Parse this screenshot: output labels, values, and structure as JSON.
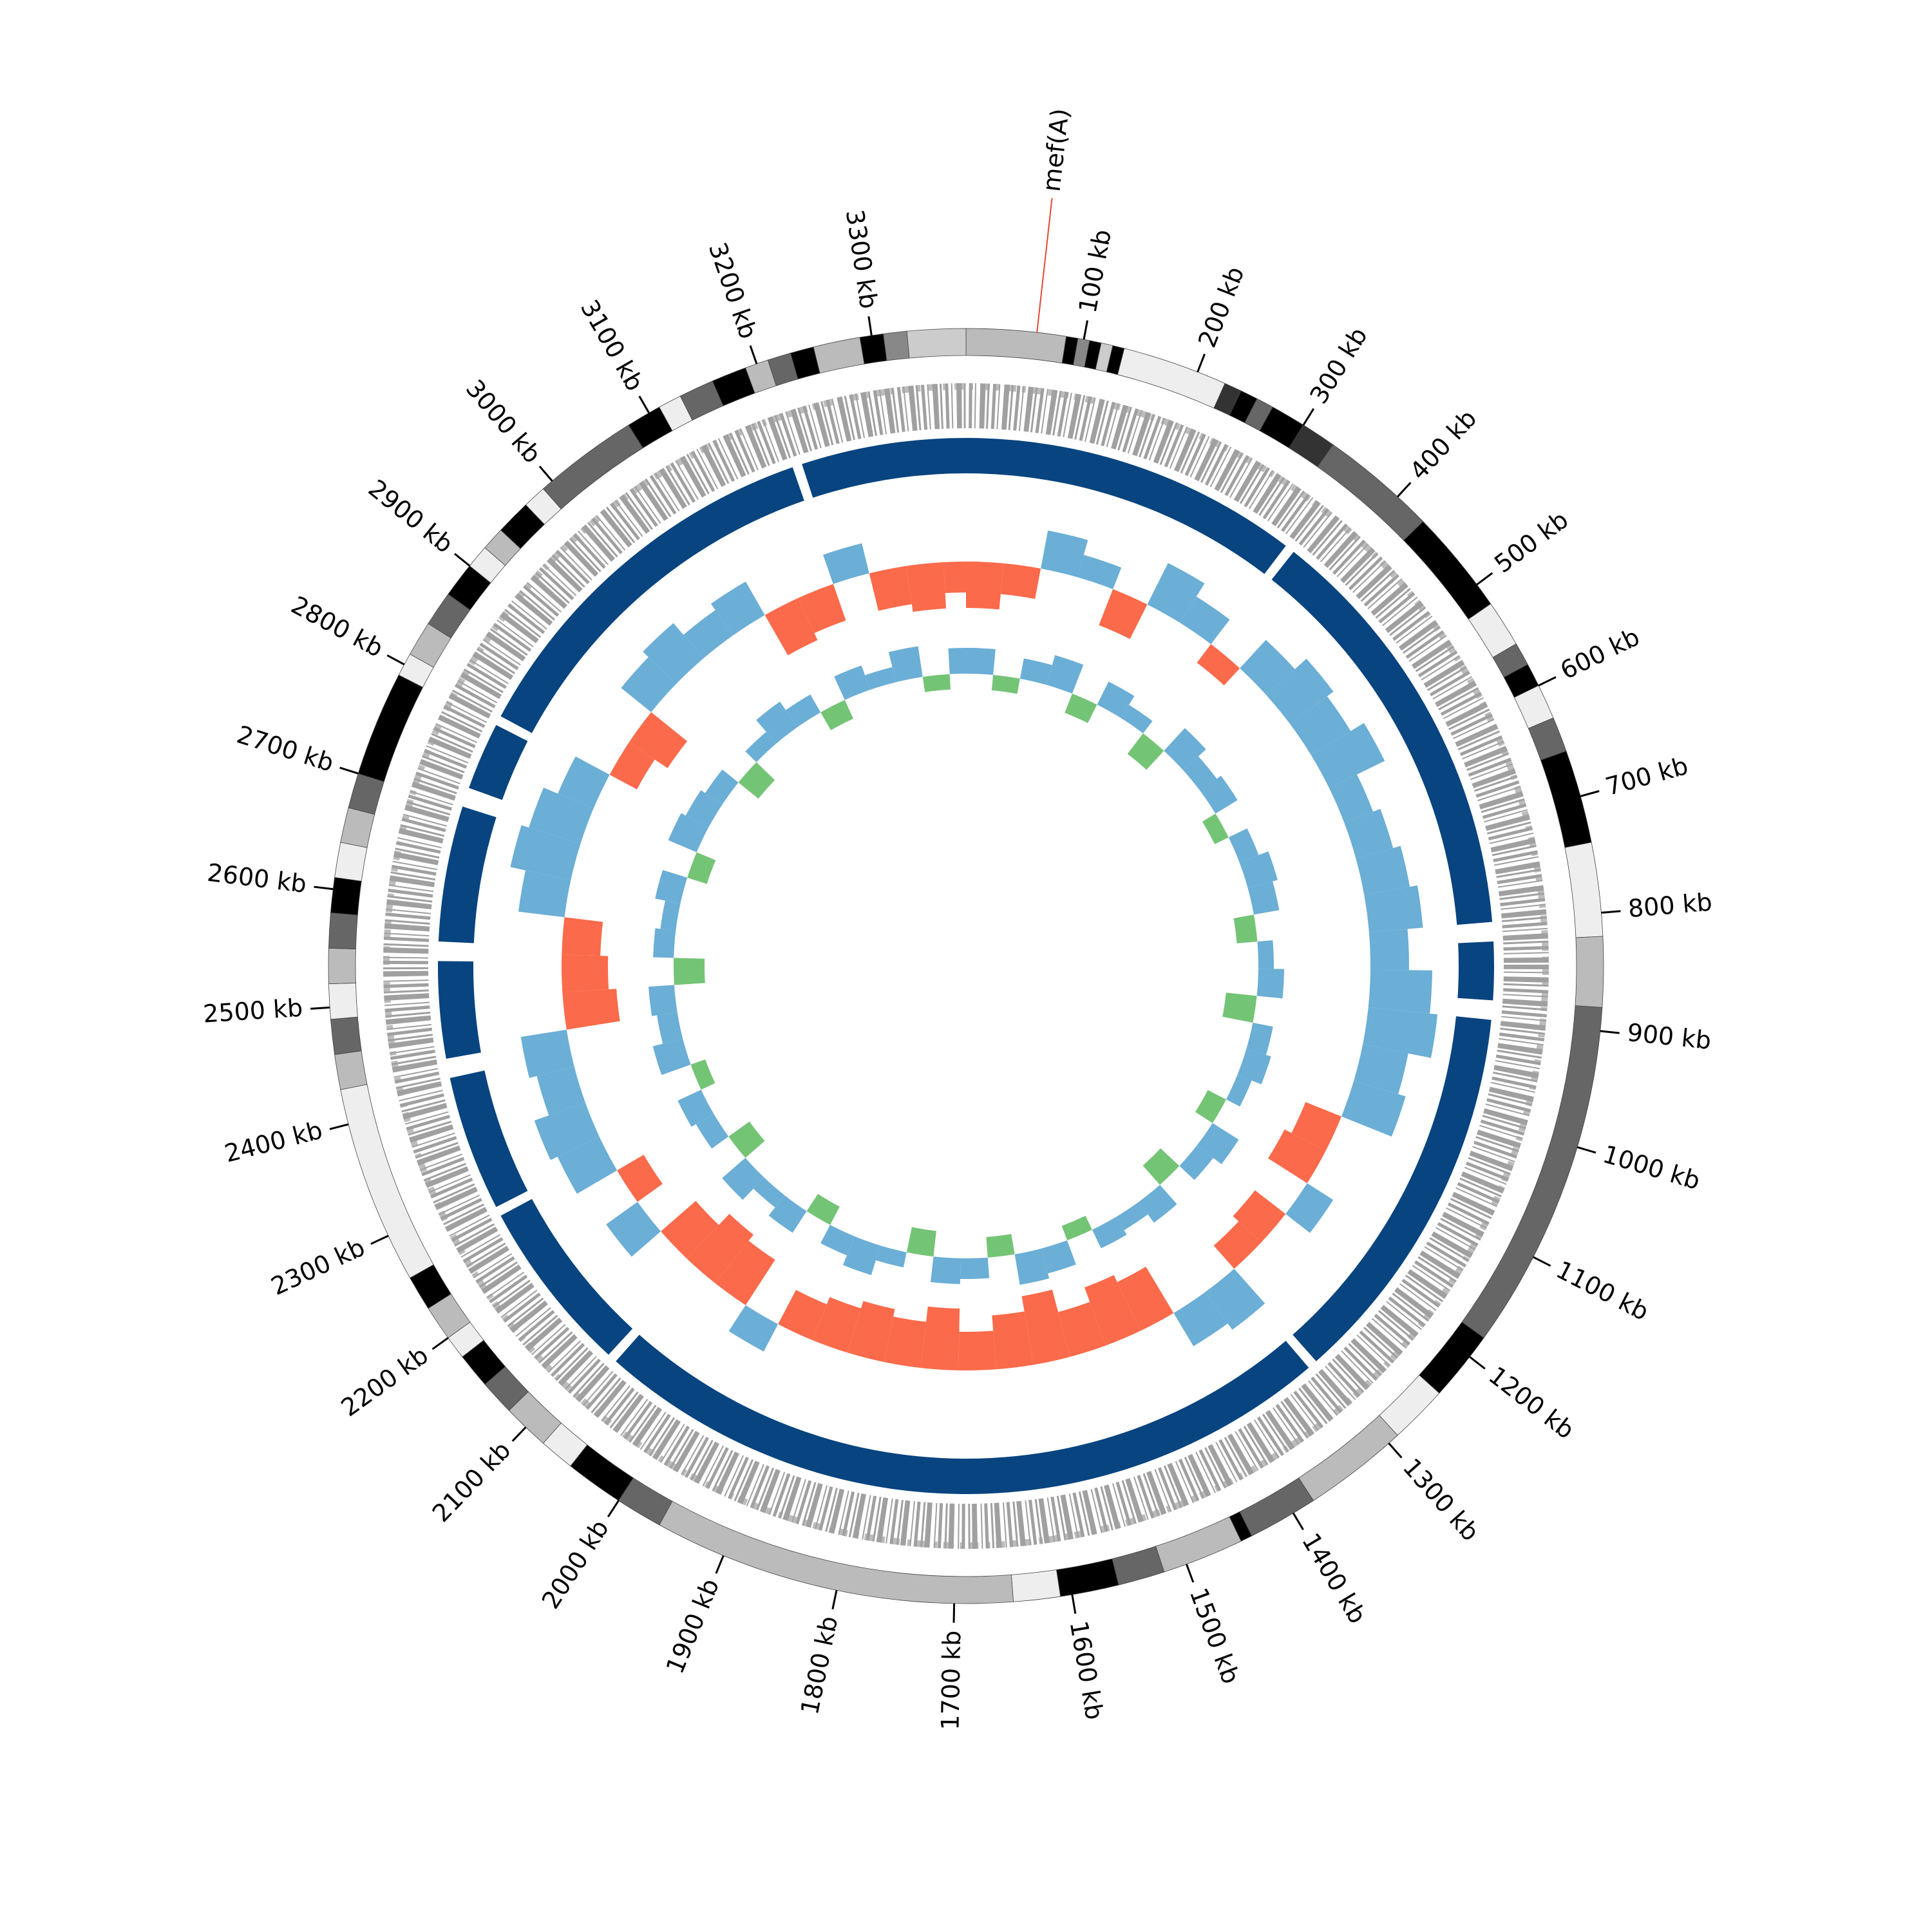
{
  "chart_data": {
    "type": "circular-genome",
    "xlim": [
      0,
      3380
    ],
    "xticks": [
      {
        "value": 100,
        "label": "100 kb"
      },
      {
        "value": 200,
        "label": "200 kb"
      },
      {
        "value": 300,
        "label": "300 kb"
      },
      {
        "value": 400,
        "label": "400 kb"
      },
      {
        "value": 500,
        "label": "500 kb"
      },
      {
        "value": 600,
        "label": "600 kb"
      },
      {
        "value": 700,
        "label": "700 kb"
      },
      {
        "value": 800,
        "label": "800 kb"
      },
      {
        "value": 900,
        "label": "900 kb"
      },
      {
        "value": 1000,
        "label": "1000 kb"
      },
      {
        "value": 1100,
        "label": "1100 kb"
      },
      {
        "value": 1200,
        "label": "1200 kb"
      },
      {
        "value": 1300,
        "label": "1300 kb"
      },
      {
        "value": 1400,
        "label": "1400 kb"
      },
      {
        "value": 1500,
        "label": "1500 kb"
      },
      {
        "value": 1600,
        "label": "1600 kb"
      },
      {
        "value": 1700,
        "label": "1700 kb"
      },
      {
        "value": 1800,
        "label": "1800 kb"
      },
      {
        "value": 1900,
        "label": "1900 kb"
      },
      {
        "value": 2000,
        "label": "2000 kb"
      },
      {
        "value": 2100,
        "label": "2100 kb"
      },
      {
        "value": 2200,
        "label": "2200 kb"
      },
      {
        "value": 2300,
        "label": "2300 kb"
      },
      {
        "value": 2400,
        "label": "2400 kb"
      },
      {
        "value": 2500,
        "label": "2500 kb"
      },
      {
        "value": 2600,
        "label": "2600 kb"
      },
      {
        "value": 2700,
        "label": "2700 kb"
      },
      {
        "value": 2800,
        "label": "2800 kb"
      },
      {
        "value": 2900,
        "label": "2900 kb"
      },
      {
        "value": 3000,
        "label": "3000 kb"
      },
      {
        "value": 3100,
        "label": "3100 kb"
      },
      {
        "value": 3200,
        "label": "3200 kb"
      },
      {
        "value": 3300,
        "label": "3300 kb"
      }
    ],
    "annotation": {
      "text": "mef(A)",
      "x": 60,
      "line_color": "#e34a33",
      "text_color": "#3182bd"
    },
    "bands": [
      {
        "start": 0,
        "end": 85,
        "color": "#bbbbbb"
      },
      {
        "start": 85,
        "end": 95,
        "color": "#000000"
      },
      {
        "start": 95,
        "end": 105,
        "color": "#888888"
      },
      {
        "start": 105,
        "end": 115,
        "color": "#000000"
      },
      {
        "start": 115,
        "end": 125,
        "color": "#cccccc"
      },
      {
        "start": 125,
        "end": 135,
        "color": "#000000"
      },
      {
        "start": 135,
        "end": 225,
        "color": "#eeeeee"
      },
      {
        "start": 225,
        "end": 240,
        "color": "#333333"
      },
      {
        "start": 240,
        "end": 255,
        "color": "#000000"
      },
      {
        "start": 255,
        "end": 270,
        "color": "#666666"
      },
      {
        "start": 270,
        "end": 300,
        "color": "#000000"
      },
      {
        "start": 300,
        "end": 330,
        "color": "#333333"
      },
      {
        "start": 330,
        "end": 430,
        "color": "#666666"
      },
      {
        "start": 430,
        "end": 520,
        "color": "#000000"
      },
      {
        "start": 520,
        "end": 560,
        "color": "#eeeeee"
      },
      {
        "start": 560,
        "end": 580,
        "color": "#666666"
      },
      {
        "start": 580,
        "end": 600,
        "color": "#000000"
      },
      {
        "start": 600,
        "end": 630,
        "color": "#eeeeee"
      },
      {
        "start": 630,
        "end": 660,
        "color": "#666666"
      },
      {
        "start": 660,
        "end": 740,
        "color": "#000000"
      },
      {
        "start": 740,
        "end": 820,
        "color": "#eeeeee"
      },
      {
        "start": 820,
        "end": 880,
        "color": "#bbbbbb"
      },
      {
        "start": 880,
        "end": 1180,
        "color": "#666666"
      },
      {
        "start": 1180,
        "end": 1240,
        "color": "#000000"
      },
      {
        "start": 1240,
        "end": 1290,
        "color": "#eeeeee"
      },
      {
        "start": 1290,
        "end": 1380,
        "color": "#bbbbbb"
      },
      {
        "start": 1380,
        "end": 1440,
        "color": "#666666"
      },
      {
        "start": 1440,
        "end": 1450,
        "color": "#000000"
      },
      {
        "start": 1450,
        "end": 1520,
        "color": "#bbbbbb"
      },
      {
        "start": 1520,
        "end": 1560,
        "color": "#666666"
      },
      {
        "start": 1560,
        "end": 1610,
        "color": "#000000"
      },
      {
        "start": 1610,
        "end": 1650,
        "color": "#eeeeee"
      },
      {
        "start": 1650,
        "end": 1960,
        "color": "#bbbbbb"
      },
      {
        "start": 1960,
        "end": 2000,
        "color": "#666666"
      },
      {
        "start": 2000,
        "end": 2050,
        "color": "#000000"
      },
      {
        "start": 2050,
        "end": 2080,
        "color": "#eeeeee"
      },
      {
        "start": 2080,
        "end": 2120,
        "color": "#bbbbbb"
      },
      {
        "start": 2120,
        "end": 2150,
        "color": "#666666"
      },
      {
        "start": 2150,
        "end": 2180,
        "color": "#000000"
      },
      {
        "start": 2180,
        "end": 2200,
        "color": "#eeeeee"
      },
      {
        "start": 2200,
        "end": 2230,
        "color": "#bbbbbb"
      },
      {
        "start": 2230,
        "end": 2260,
        "color": "#000000"
      },
      {
        "start": 2260,
        "end": 2430,
        "color": "#eeeeee"
      },
      {
        "start": 2430,
        "end": 2460,
        "color": "#bbbbbb"
      },
      {
        "start": 2460,
        "end": 2490,
        "color": "#666666"
      },
      {
        "start": 2490,
        "end": 2520,
        "color": "#eeeeee"
      },
      {
        "start": 2520,
        "end": 2550,
        "color": "#bbbbbb"
      },
      {
        "start": 2550,
        "end": 2580,
        "color": "#666666"
      },
      {
        "start": 2580,
        "end": 2610,
        "color": "#000000"
      },
      {
        "start": 2610,
        "end": 2640,
        "color": "#eeeeee"
      },
      {
        "start": 2640,
        "end": 2670,
        "color": "#bbbbbb"
      },
      {
        "start": 2670,
        "end": 2700,
        "color": "#666666"
      },
      {
        "start": 2700,
        "end": 2790,
        "color": "#000000"
      },
      {
        "start": 2790,
        "end": 2810,
        "color": "#eeeeee"
      },
      {
        "start": 2810,
        "end": 2840,
        "color": "#bbbbbb"
      },
      {
        "start": 2840,
        "end": 2870,
        "color": "#666666"
      },
      {
        "start": 2870,
        "end": 2900,
        "color": "#000000"
      },
      {
        "start": 2900,
        "end": 2920,
        "color": "#eeeeee"
      },
      {
        "start": 2920,
        "end": 2940,
        "color": "#bbbbbb"
      },
      {
        "start": 2940,
        "end": 2970,
        "color": "#000000"
      },
      {
        "start": 2970,
        "end": 2990,
        "color": "#eeeeee"
      },
      {
        "start": 2990,
        "end": 3080,
        "color": "#666666"
      },
      {
        "start": 3080,
        "end": 3110,
        "color": "#000000"
      },
      {
        "start": 3110,
        "end": 3130,
        "color": "#eeeeee"
      },
      {
        "start": 3130,
        "end": 3160,
        "color": "#666666"
      },
      {
        "start": 3160,
        "end": 3190,
        "color": "#000000"
      },
      {
        "start": 3190,
        "end": 3210,
        "color": "#bbbbbb"
      },
      {
        "start": 3210,
        "end": 3230,
        "color": "#666666"
      },
      {
        "start": 3230,
        "end": 3250,
        "color": "#000000"
      },
      {
        "start": 3250,
        "end": 3290,
        "color": "#bbbbbb"
      },
      {
        "start": 3290,
        "end": 3310,
        "color": "#000000"
      },
      {
        "start": 3310,
        "end": 3330,
        "color": "#888888"
      },
      {
        "start": 3330,
        "end": 3380,
        "color": "#cccccc"
      }
    ],
    "segments": {
      "color": "#08447f",
      "items": [
        {
          "start": 0,
          "end": 350
        },
        {
          "start": 360,
          "end": 800
        },
        {
          "start": 820,
          "end": 880
        },
        {
          "start": 900,
          "end": 1300
        },
        {
          "start": 1310,
          "end": 2080
        },
        {
          "start": 2090,
          "end": 2270
        },
        {
          "start": 2280,
          "end": 2420
        },
        {
          "start": 2440,
          "end": 2540
        },
        {
          "start": 2560,
          "end": 2700
        },
        {
          "start": 2720,
          "end": 2790
        },
        {
          "start": 2800,
          "end": 3200
        },
        {
          "start": 3210,
          "end": 3380
        }
      ]
    },
    "x": [
      25,
      75,
      125,
      175,
      225,
      275,
      325,
      375,
      425,
      475,
      525,
      575,
      625,
      675,
      725,
      775,
      825,
      875,
      925,
      975,
      1025,
      1075,
      1125,
      1175,
      1225,
      1275,
      1325,
      1375,
      1425,
      1475,
      1525,
      1575,
      1625,
      1675,
      1725,
      1775,
      1825,
      1875,
      1925,
      1975,
      2025,
      2075,
      2125,
      2175,
      2225,
      2275,
      2325,
      2375,
      2425,
      2475,
      2525,
      2575,
      2625,
      2675,
      2725,
      2775,
      2825,
      2875,
      2925,
      2975,
      3025,
      3075,
      3125,
      3175,
      3225,
      3275,
      3325,
      3375
    ],
    "series": [
      {
        "ylim": [
          -1,
          1
        ],
        "color": "#6baed6",
        "negative_color": "#fb6a4a",
        "values": [
          -0.6,
          -0.4,
          0.5,
          0.3,
          -0.5,
          0.6,
          0.4,
          -0.3,
          0.5,
          0.7,
          0.6,
          0.8,
          0.4,
          0.5,
          0.6,
          0.7,
          0.5,
          0.8,
          0.9,
          0.6,
          0.7,
          -0.5,
          -0.6,
          0.4,
          -0.5,
          -0.4,
          0.6,
          0.5,
          -0.7,
          -0.8,
          -0.6,
          -0.9,
          -0.7,
          -0.5,
          -0.8,
          -0.6,
          -0.7,
          -0.6,
          -0.5,
          0.4,
          -0.7,
          -0.8,
          -0.6,
          0.5,
          -0.4,
          0.6,
          0.7,
          0.5,
          0.6,
          -0.7,
          -0.6,
          -0.5,
          0.6,
          0.8,
          0.7,
          0.5,
          -0.4,
          -0.6,
          0.5,
          0.6,
          0.4,
          0.5,
          -0.6,
          -0.5,
          0.4,
          -0.5,
          -0.6,
          -0.4
        ]
      },
      {
        "ylim": [
          -1,
          1
        ],
        "color": "#6baed6",
        "negative_color": "#74c476",
        "values": [
          0.5,
          -0.3,
          0.4,
          0.6,
          -0.4,
          0.5,
          0.3,
          -0.5,
          0.6,
          0.4,
          0.5,
          -0.3,
          0.4,
          0.6,
          0.5,
          -0.4,
          0.3,
          0.5,
          -0.6,
          0.4,
          0.5,
          0.3,
          -0.4,
          0.6,
          0.4,
          -0.5,
          0.5,
          0.3,
          0.4,
          -0.3,
          0.5,
          0.6,
          -0.4,
          0.4,
          0.5,
          -0.5,
          0.3,
          0.6,
          0.4,
          -0.4,
          0.5,
          0.3,
          0.6,
          -0.5,
          0.4,
          0.5,
          -0.3,
          0.6,
          0.4,
          0.5,
          -0.6,
          0.4,
          0.3,
          0.5,
          -0.4,
          0.6,
          0.5,
          0.4,
          -0.5,
          0.3,
          0.6,
          0.4,
          -0.4,
          0.5,
          0.3,
          0.6,
          -0.3,
          0.5
        ]
      }
    ]
  }
}
